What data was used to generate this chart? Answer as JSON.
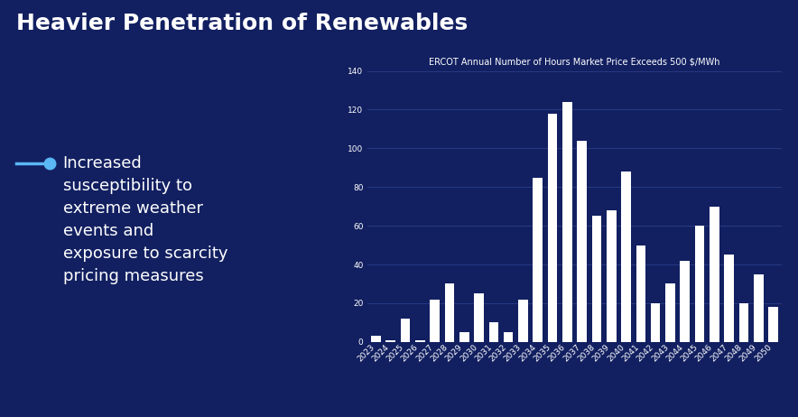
{
  "title": "Heavier Penetration of Renewables",
  "chart_title": "ERCOT Annual Number of Hours Market Price Exceeds 500 $/MWh",
  "years": [
    2023,
    2024,
    2025,
    2026,
    2027,
    2028,
    2029,
    2030,
    2031,
    2032,
    2033,
    2034,
    2035,
    2036,
    2037,
    2038,
    2039,
    2040,
    2041,
    2042,
    2043,
    2044,
    2045,
    2046,
    2047,
    2048,
    2049,
    2050
  ],
  "values": [
    3,
    1,
    12,
    1,
    22,
    30,
    5,
    25,
    10,
    5,
    22,
    85,
    118,
    124,
    104,
    65,
    68,
    88,
    50,
    20,
    30,
    42,
    60,
    70,
    45,
    20,
    35,
    18
  ],
  "bar_color": "#ffffff",
  "bg_color": "#122061",
  "chart_bg": "#152369",
  "grid_color": "#2a3f88",
  "text_color": "#ffffff",
  "ylim": [
    0,
    140
  ],
  "yticks": [
    0,
    20,
    40,
    60,
    80,
    100,
    120,
    140
  ],
  "bullet_text": "Increased\nsusceptibility to\nextreme weather\nevents and\nexposure to scarcity\npricing measures",
  "bullet_line_color": "#5bb8f5",
  "title_fontsize": 18,
  "chart_title_fontsize": 7,
  "tick_fontsize": 6.5,
  "label_fontsize": 8
}
